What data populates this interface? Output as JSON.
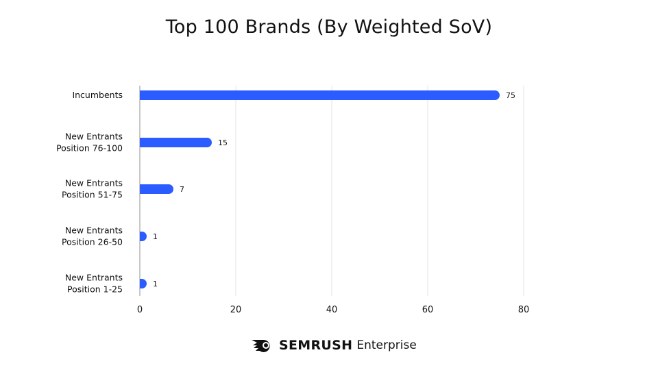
{
  "chart_data": {
    "type": "bar",
    "orientation": "horizontal",
    "title": "Top 100 Brands (By Weighted SoV)",
    "categories": [
      [
        "Incumbents"
      ],
      [
        "New Entrants",
        "Position 76-100"
      ],
      [
        "New Entrants",
        "Position 51-75"
      ],
      [
        "New Entrants",
        "Position 26-50"
      ],
      [
        "New Entrants",
        "Position 1-25"
      ]
    ],
    "values": [
      75,
      15,
      7,
      1,
      1
    ],
    "data_labels": [
      "75",
      "15",
      "7",
      "1",
      "1"
    ],
    "xlim": [
      0,
      80
    ],
    "xticks": [
      0,
      20,
      40,
      60,
      80
    ],
    "grid": "vertical",
    "bar_color": "#2b5cff",
    "grid_color": "#e3e3e3"
  },
  "footer": {
    "brand": "SEMRUSH",
    "product": "Enterprise",
    "logo_icon": "semrush-fireball-icon"
  }
}
